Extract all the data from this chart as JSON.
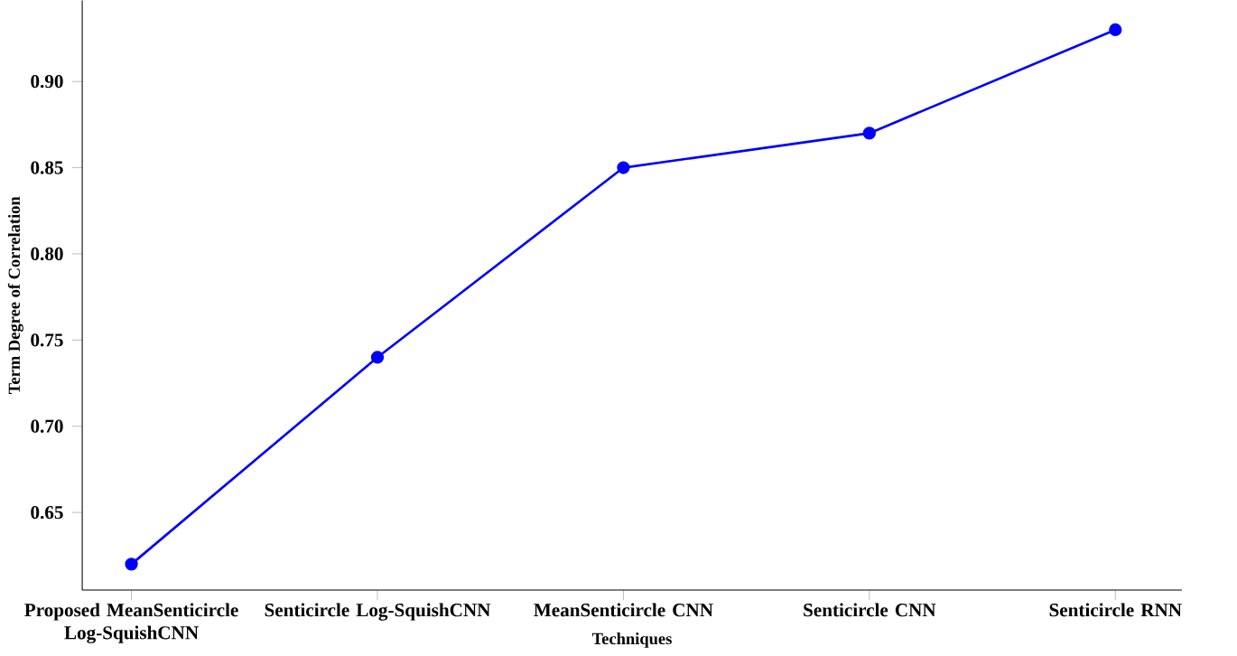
{
  "chart_data": {
    "type": "line",
    "xlabel": "Techniques",
    "ylabel": "Term Degree of Correlation",
    "categories": [
      "Proposed MeanSenticircle Log-SquishCNN",
      "Senticircle Log-SquishCNN",
      "MeanSenticircle CNN",
      "Senticircle CNN",
      "Senticircle RNN"
    ],
    "values": [
      0.62,
      0.74,
      0.85,
      0.87,
      0.93
    ],
    "color": "#0000ff",
    "marker": "circle",
    "line_style": "solid",
    "ylim": [
      0.605,
      0.947
    ],
    "yticks": [
      0.65,
      {
        "value": 0.7,
        "label": "0.70"
      },
      0.75,
      {
        "value": 0.8,
        "label": "0.80"
      },
      0.85,
      {
        "value": 0.9,
        "label": "0.90"
      }
    ]
  }
}
